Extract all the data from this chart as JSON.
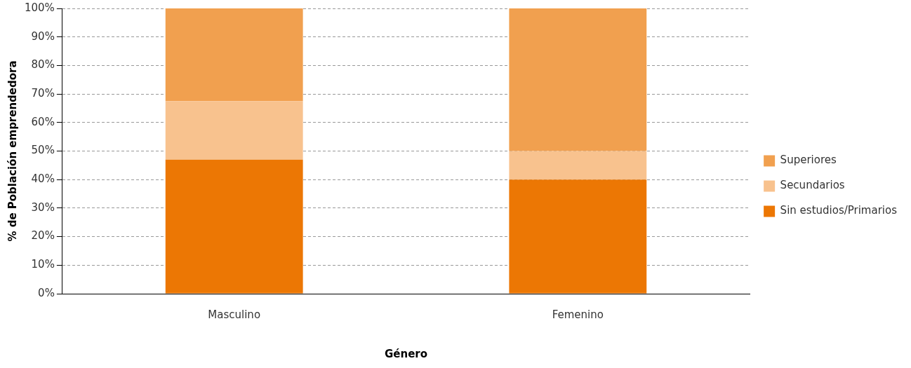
{
  "chart_data": {
    "type": "bar",
    "stacked": true,
    "xlabel": "Género",
    "ylabel": "% de Población emprendedora",
    "categories": [
      "Masculino",
      "Femenino"
    ],
    "series": [
      {
        "name": "Sin estudios/Primarios",
        "color": "#ec7704",
        "values": [
          47,
          40
        ]
      },
      {
        "name": "Secundarios",
        "color": "#f8c28e",
        "values": [
          20.5,
          10
        ]
      },
      {
        "name": "Superiores",
        "color": "#f1a04f",
        "values": [
          32.5,
          50
        ]
      }
    ],
    "ylim": [
      0,
      100
    ],
    "yticks": [
      {
        "value": 0,
        "label": "0%"
      },
      {
        "value": 10,
        "label": "10%"
      },
      {
        "value": 20,
        "label": "20%"
      },
      {
        "value": 30,
        "label": "30%"
      },
      {
        "value": 40,
        "label": "40%"
      },
      {
        "value": 50,
        "label": "50%"
      },
      {
        "value": 60,
        "label": "60%"
      },
      {
        "value": 70,
        "label": "70%"
      },
      {
        "value": 80,
        "label": "80%"
      },
      {
        "value": 90,
        "label": "90%"
      },
      {
        "value": 100,
        "label": "100%"
      }
    ],
    "grid": "y",
    "legend": "right"
  }
}
